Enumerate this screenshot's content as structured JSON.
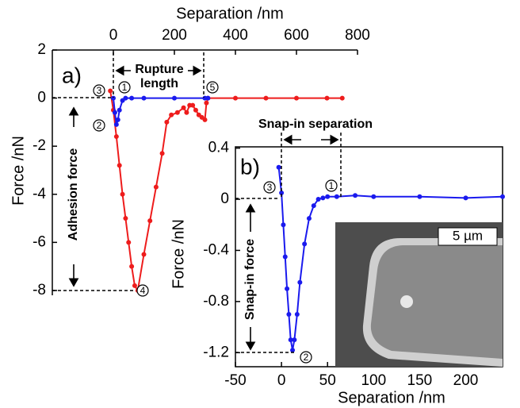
{
  "chart_data": [
    {
      "type": "line",
      "x_label": "Separation /nm",
      "y_label": "Force /nN",
      "panel_label": "a)",
      "annotations": [
        "Rupture",
        "length",
        "Adhesion force",
        "1",
        "3",
        "5",
        "2",
        "4"
      ],
      "xlim": [
        -200,
        800
      ],
      "xticks": [
        0,
        200,
        400,
        600,
        800
      ],
      "ylim": [
        -8.2,
        2
      ],
      "yticks": [
        2,
        0,
        -2,
        -4,
        -6,
        -8
      ],
      "series": [
        {
          "color": "#ee1c1c",
          "markers": true,
          "x": [
            -10,
            0,
            10,
            20,
            30,
            40,
            50,
            60,
            70,
            80,
            100,
            120,
            140,
            160,
            175,
            190,
            210,
            230,
            240,
            250,
            260,
            270,
            280,
            290,
            300,
            305,
            310,
            400,
            500,
            600,
            700,
            750
          ],
          "values": [
            0.3,
            -0.5,
            -1.6,
            -2.8,
            -4,
            -5,
            -6,
            -7,
            -7.8,
            -8,
            -6.5,
            -5.1,
            -3.7,
            -2.3,
            -1.0,
            -0.7,
            -0.6,
            -0.4,
            -0.6,
            -0.3,
            -0.3,
            -0.5,
            -0.7,
            -0.8,
            -0.9,
            -0.2,
            0,
            0,
            0,
            0,
            0,
            0
          ]
        },
        {
          "color": "#1a1aee",
          "markers": true,
          "x": [
            0,
            5,
            10,
            15,
            20,
            30,
            40,
            60,
            100,
            200,
            300,
            310
          ],
          "values": [
            0,
            -0.6,
            -1.1,
            -0.9,
            -0.5,
            -0.1,
            0,
            0,
            0,
            0,
            0,
            0
          ]
        }
      ]
    },
    {
      "type": "line",
      "x_label": "Separation /nm",
      "y_label": "Force /nN",
      "panel_label": "b)",
      "annotations": [
        "Snap-in separation",
        "Snap-in force",
        "3",
        "1",
        "2",
        "5 µm"
      ],
      "xlim": [
        -50,
        240
      ],
      "xticks": [
        -50,
        0,
        50,
        100,
        150,
        200
      ],
      "ylim": [
        -1.31,
        0.41
      ],
      "yticks": [
        0.4,
        0,
        -0.4,
        -0.8,
        -1.2
      ],
      "series": [
        {
          "color": "#1a1aee",
          "markers": true,
          "x": [
            -3,
            0,
            2,
            4,
            6,
            8,
            10,
            12,
            14,
            17,
            20,
            25,
            30,
            35,
            40,
            45,
            50,
            60,
            80,
            100,
            150,
            200,
            240
          ],
          "values": [
            0.25,
            0.05,
            -0.2,
            -0.45,
            -0.7,
            -0.9,
            -1.1,
            -1.18,
            -1.1,
            -0.9,
            -0.65,
            -0.35,
            -0.15,
            -0.05,
            0,
            0.01,
            0.02,
            0.02,
            0.03,
            0.02,
            0.02,
            0.01,
            0.02
          ]
        }
      ]
    }
  ]
}
